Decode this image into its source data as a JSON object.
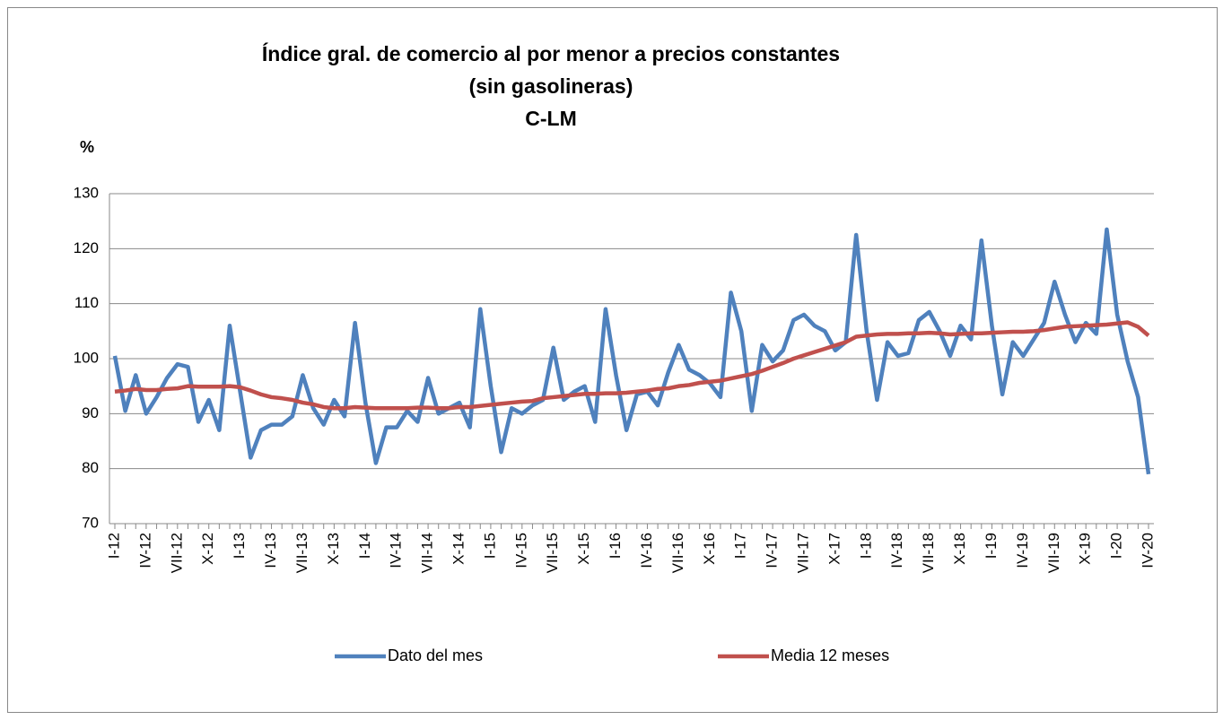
{
  "chart_data": {
    "type": "line",
    "title": [
      "Índice gral. de comercio al por menor a precios constantes",
      "(sin gasolineras)",
      "C-LM"
    ],
    "y_label": "%",
    "categories": [
      "I-12",
      null,
      null,
      "IV-12",
      null,
      null,
      "VII-12",
      null,
      null,
      "X-12",
      null,
      null,
      "I-13",
      null,
      null,
      "IV-13",
      null,
      null,
      "VII-13",
      null,
      null,
      "X-13",
      null,
      null,
      "I-14",
      null,
      null,
      "IV-14",
      null,
      null,
      "VII-14",
      null,
      null,
      "X-14",
      null,
      null,
      "I-15",
      null,
      null,
      "IV-15",
      null,
      null,
      "VII-15",
      null,
      null,
      "X-15",
      null,
      null,
      "I-16",
      null,
      null,
      "IV-16",
      null,
      null,
      "VII-16",
      null,
      null,
      "X-16",
      null,
      null,
      "I-17",
      null,
      null,
      "IV-17",
      null,
      null,
      "VII-17",
      null,
      null,
      "X-17",
      null,
      null,
      "I-18",
      null,
      null,
      "IV-18",
      null,
      null,
      "VII-18",
      null,
      null,
      "X-18",
      null,
      null,
      "I-19",
      null,
      null,
      "IV-19",
      null,
      null,
      "VII-19",
      null,
      null,
      "X-19",
      null,
      null,
      "I-20",
      null,
      null,
      "IV-20"
    ],
    "series": [
      {
        "name": "Dato del mes",
        "color": "#4f81bd",
        "values": [
          100.5,
          90.5,
          97,
          90,
          93,
          96.5,
          99,
          98.5,
          88.5,
          92.5,
          87,
          106,
          94,
          82,
          87,
          88,
          88,
          89.5,
          97,
          91,
          88,
          92.5,
          89.5,
          106.5,
          92,
          81,
          87.5,
          87.5,
          90.5,
          88.5,
          96.5,
          90,
          91,
          92,
          87.5,
          109,
          95,
          83,
          91,
          90,
          91.5,
          92.5,
          102,
          92.5,
          94,
          95,
          88.5,
          109,
          97,
          87,
          93.5,
          94,
          91.5,
          97.5,
          102.5,
          98,
          97,
          95.5,
          93,
          112,
          105,
          90.5,
          102.5,
          99.5,
          101.5,
          107,
          108,
          106,
          105,
          101.5,
          103,
          122.5,
          105,
          92.5,
          103,
          100.5,
          101,
          107,
          108.5,
          105,
          100.5,
          106,
          103.5,
          121.5,
          106,
          93.5,
          103,
          100.5,
          103.5,
          106.5,
          114,
          108,
          103,
          106.5,
          104.5,
          123.5,
          108,
          99.5,
          93,
          79
        ]
      },
      {
        "name": "Media 12 meses",
        "color": "#c0504d",
        "values": [
          94,
          94.2,
          94.5,
          94.3,
          94.3,
          94.5,
          94.6,
          95,
          94.9,
          94.9,
          94.9,
          95,
          94.8,
          94.2,
          93.5,
          93,
          92.8,
          92.5,
          92,
          91.7,
          91.2,
          91,
          91,
          91.2,
          91.1,
          91,
          91,
          91,
          91,
          91.1,
          91.1,
          91,
          91,
          91.2,
          91.2,
          91.4,
          91.6,
          91.8,
          92,
          92.2,
          92.3,
          92.8,
          93,
          93.2,
          93.4,
          93.6,
          93.6,
          93.7,
          93.7,
          93.8,
          94,
          94.2,
          94.5,
          94.6,
          95,
          95.2,
          95.6,
          95.8,
          96,
          96.4,
          96.8,
          97.2,
          97.8,
          98.5,
          99.2,
          100,
          100.6,
          101.2,
          101.8,
          102.4,
          103,
          104,
          104.2,
          104.4,
          104.5,
          104.5,
          104.6,
          104.6,
          104.7,
          104.6,
          104.4,
          104.5,
          104.6,
          104.6,
          104.7,
          104.8,
          104.9,
          104.9,
          105,
          105.2,
          105.5,
          105.8,
          105.9,
          106,
          106.1,
          106.2,
          106.4,
          106.6,
          105.8,
          104.2
        ]
      }
    ],
    "ylim": [
      70,
      130
    ],
    "yticks": [
      70,
      80,
      90,
      100,
      110,
      120,
      130
    ],
    "grid": true,
    "legend": "bottom"
  }
}
